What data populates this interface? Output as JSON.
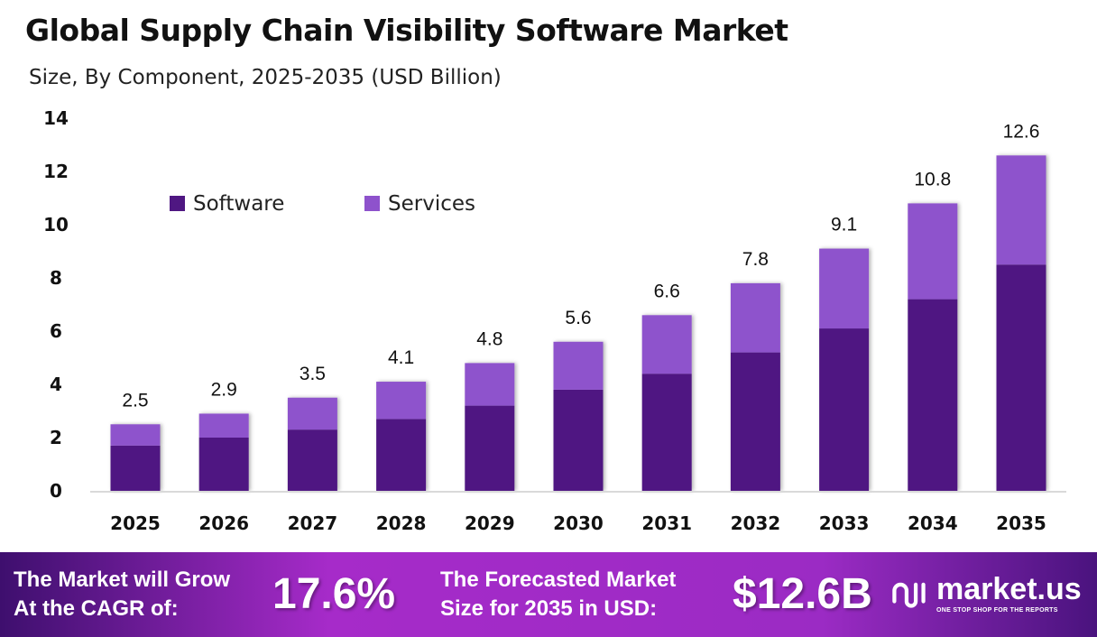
{
  "chart_data": {
    "type": "bar",
    "stacked": true,
    "title": "Global Supply Chain Visibility Software Market",
    "subtitle": "Size, By Component, 2025-2035 (USD Billion)",
    "categories": [
      "2025",
      "2026",
      "2027",
      "2028",
      "2029",
      "2030",
      "2031",
      "2032",
      "2033",
      "2034",
      "2035"
    ],
    "series": [
      {
        "name": "Software",
        "color": "#4f1782",
        "values": [
          1.7,
          2.0,
          2.3,
          2.7,
          3.2,
          3.8,
          4.4,
          5.2,
          6.1,
          7.2,
          8.5
        ]
      },
      {
        "name": "Services",
        "color": "#8e52cc",
        "values": [
          0.8,
          0.9,
          1.2,
          1.4,
          1.6,
          1.8,
          2.2,
          2.6,
          3.0,
          3.6,
          4.1
        ]
      }
    ],
    "totals": [
      "2.5",
      "2.9",
      "3.5",
      "4.1",
      "4.8",
      "5.6",
      "6.6",
      "7.8",
      "9.1",
      "10.8",
      "12.6"
    ],
    "ylim": [
      0,
      14
    ],
    "yticks": [
      "0",
      "2",
      "4",
      "6",
      "8",
      "10",
      "12",
      "14"
    ],
    "grid": false,
    "legend_position": "top-left"
  },
  "footer": {
    "cagr_label_1": "The Market will Grow",
    "cagr_label_2": "At the CAGR of:",
    "cagr_value": "17.6%",
    "forecast_label_1": "The Forecasted Market",
    "forecast_label_2": "Size for 2035 in USD:",
    "forecast_value": "$12.6B",
    "logo_text": "market.us",
    "logo_tagline": "ONE STOP SHOP FOR THE REPORTS"
  }
}
